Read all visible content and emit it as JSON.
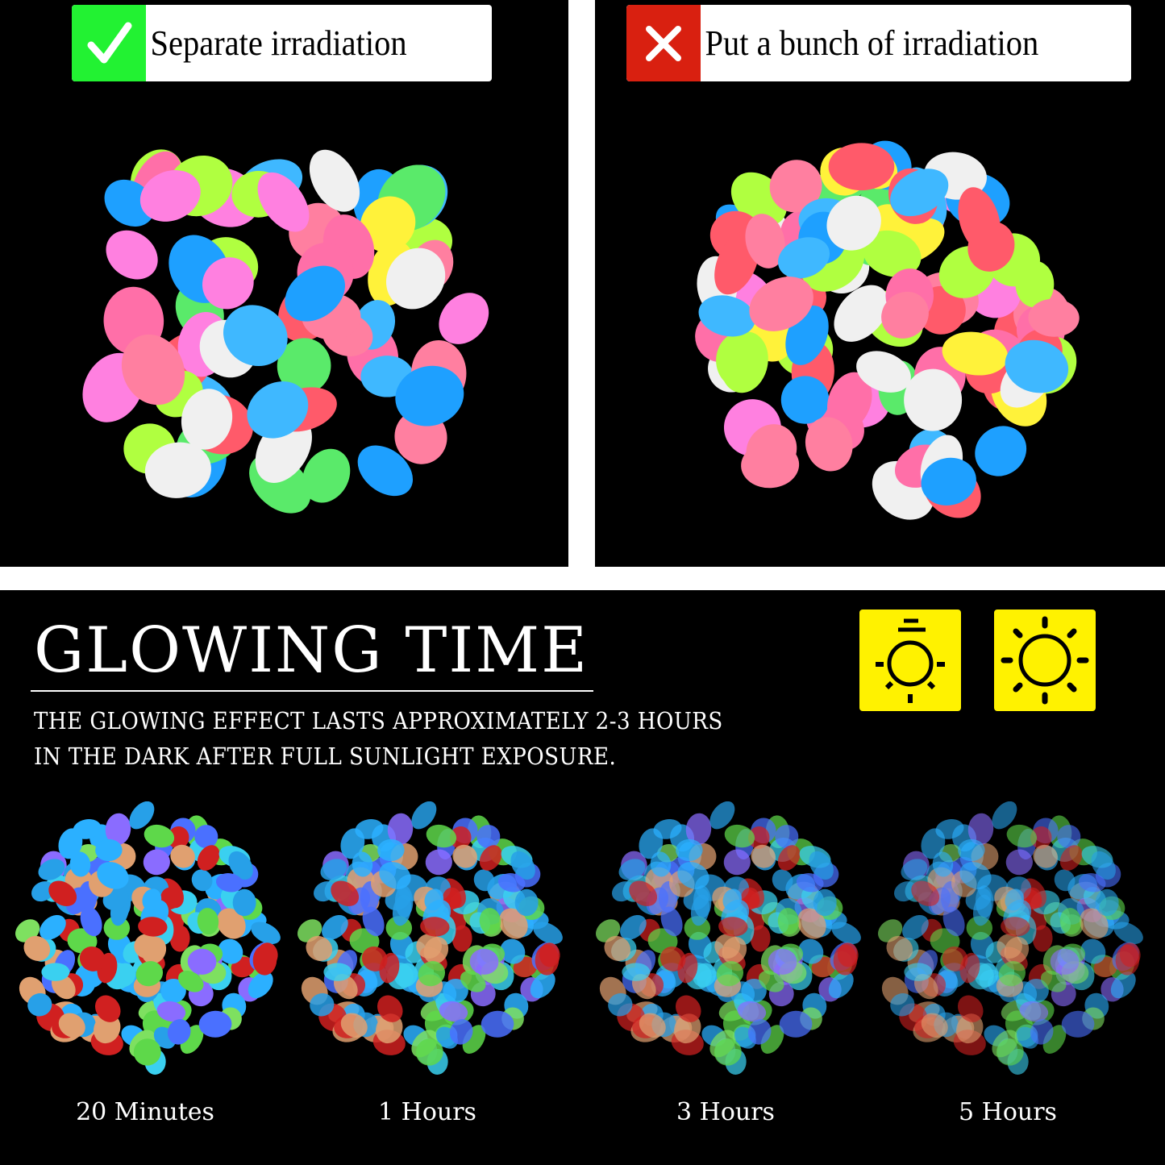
{
  "top": {
    "good": {
      "icon": "checkmark-icon",
      "label": "Separate irradiation",
      "color": "#22f232"
    },
    "bad": {
      "icon": "x-mark-icon",
      "label": "Put a bunch of irradiation",
      "color": "#d92010"
    }
  },
  "pebble_colors": [
    "#ff7fa0",
    "#ff6fa8",
    "#3fb8ff",
    "#fff23a",
    "#5aea6a",
    "#ff80e0",
    "#1ea0ff",
    "#f0f0f0",
    "#ff5a6a",
    "#b0ff40"
  ],
  "glow_colors": [
    "#2bb0ff",
    "#3ad0f0",
    "#5ed84a",
    "#8a6cff",
    "#e0a070",
    "#27a0e8",
    "#7ee060",
    "#d02020",
    "#4a70ff"
  ],
  "glowing": {
    "title": "GLOWING TIME",
    "desc_line1": "THE GLOWING EFFECT LASTS APPROXIMATELY 2-3 HOURS",
    "desc_line2": "IN THE DARK AFTER FULL SUNLIGHT EXPOSURE.",
    "icons": [
      "dim-light-icon",
      "sun-icon"
    ],
    "icon_color": "#fff200",
    "stages": [
      {
        "label": "20 Minutes",
        "brightness": 1.0
      },
      {
        "label": "1 Hours",
        "brightness": 0.85
      },
      {
        "label": "3 Hours",
        "brightness": 0.72
      },
      {
        "label": "5 Hours",
        "brightness": 0.6
      }
    ]
  }
}
